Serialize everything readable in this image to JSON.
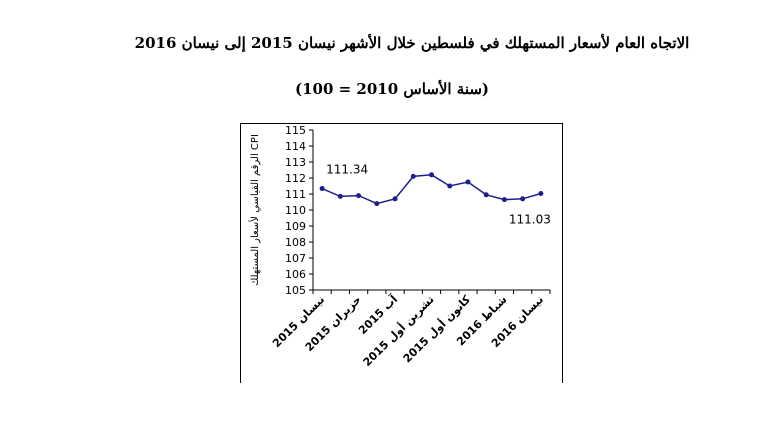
{
  "title_line1": "الاتجاه العام لأسعار المستهلك في فلسطين خلال الأشهر  نيسان 2015 إلى نيسان 2016",
  "title_line2": "(سنة الأساس 2010 = 100)",
  "chart_data": {
    "type": "line",
    "title": "",
    "ylabel": "الرقم القياسي لأسعار المستهلك CPI",
    "xlabel": "",
    "ylim": [
      105,
      115
    ],
    "yticks": [
      105,
      106,
      107,
      108,
      109,
      110,
      111,
      112,
      113,
      114,
      115
    ],
    "x_tick_labels": [
      "نيسان 2015",
      "حزيران 2015",
      "آب 2015",
      "تشرين أول 2015",
      "كانون أول 2015",
      "شباط 2016",
      "نيسان 2016"
    ],
    "x_tick_indices": [
      0,
      2,
      4,
      6,
      8,
      10,
      12
    ],
    "series": [
      {
        "values": [
          111.34,
          110.85,
          110.9,
          110.4,
          110.7,
          112.1,
          112.2,
          111.5,
          111.75,
          110.95,
          110.65,
          110.7,
          111.03
        ]
      }
    ],
    "data_labels": [
      {
        "index": 0,
        "text": "111.34"
      },
      {
        "index": 12,
        "text": "111.03"
      }
    ],
    "line_color": "#1f1f8c",
    "grid": false
  }
}
